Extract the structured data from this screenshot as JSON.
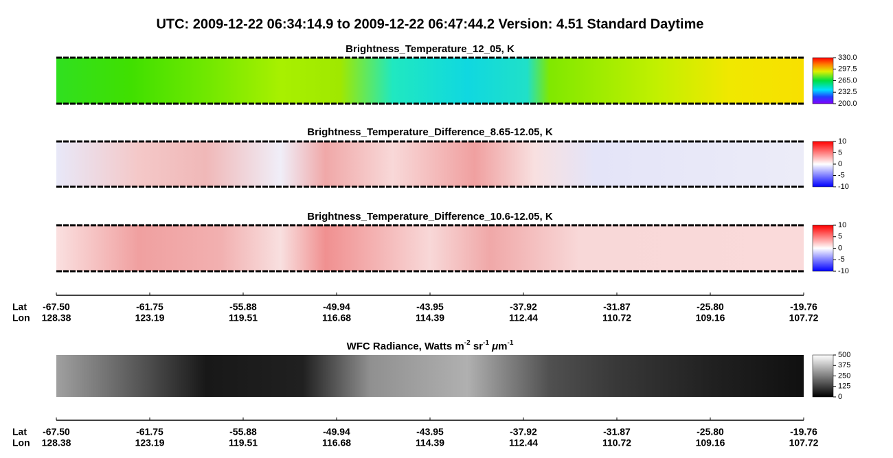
{
  "header": {
    "title": "UTC:  2009-12-22   06:34:14.9  to  2009-12-22   06:47:44.2    Version: 4.51  Standard Daytime"
  },
  "panels": [
    {
      "title": "Brightness_Temperature_12_05, K",
      "colorbar": [
        "330.0",
        "297.5",
        "265.0",
        "232.5",
        "200.0"
      ]
    },
    {
      "title": "Brightness_Temperature_Difference_8.65-12.05, K",
      "colorbar": [
        "10",
        "5",
        "0",
        "-5",
        "-10"
      ]
    },
    {
      "title": "Brightness_Temperature_Difference_10.6-12.05, K",
      "colorbar": [
        "10",
        "5",
        "0",
        "-5",
        "-10"
      ]
    },
    {
      "title_parts": [
        "WFC Radiance, Watts m",
        "-2",
        " sr",
        "-1",
        " ",
        "μ",
        "m",
        "-1"
      ],
      "colorbar": [
        "500",
        "375",
        "250",
        "125",
        "0"
      ]
    }
  ],
  "axes": [
    {
      "lat_label": "Lat",
      "lon_label": "Lon",
      "lat": [
        "-67.50",
        "-61.75",
        "-55.88",
        "-49.94",
        "-43.95",
        "-37.92",
        "-31.87",
        "-25.80",
        "-19.76"
      ],
      "lon": [
        "128.38",
        "123.19",
        "119.51",
        "116.68",
        "114.39",
        "112.44",
        "110.72",
        "109.16",
        "107.72"
      ]
    },
    {
      "lat_label": "Lat",
      "lon_label": "Lon",
      "lat": [
        "-67.50",
        "-61.75",
        "-55.88",
        "-49.94",
        "-43.95",
        "-37.92",
        "-31.87",
        "-25.80",
        "-19.76"
      ],
      "lon": [
        "128.38",
        "123.19",
        "119.51",
        "116.68",
        "114.39",
        "112.44",
        "110.72",
        "109.16",
        "107.72"
      ]
    }
  ]
}
